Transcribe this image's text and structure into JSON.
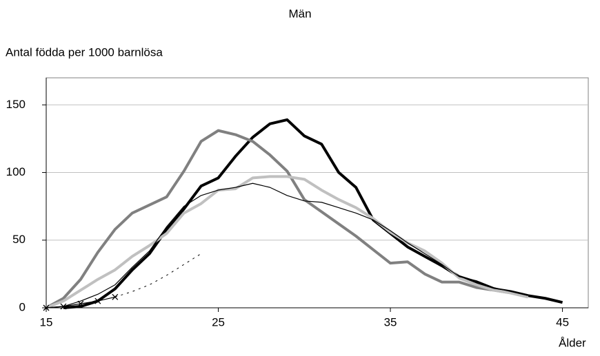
{
  "chart_data": {
    "type": "line",
    "title": "Män",
    "ylabel": "Antal födda per 1000 barnlösa",
    "xlabel": "Ålder",
    "xlim": [
      15,
      46.5
    ],
    "xticks": [
      15,
      25,
      35,
      45
    ],
    "ylim": [
      0,
      170
    ],
    "yticks": [
      0,
      50,
      100,
      150
    ],
    "grid": true,
    "series": [
      {
        "color": "#000000",
        "width": 4,
        "x": [
          16,
          17,
          18,
          19,
          20,
          21,
          22,
          23,
          24,
          25,
          26,
          27,
          28,
          29,
          30,
          31,
          32,
          33,
          34,
          35,
          36,
          37,
          38,
          39,
          40,
          41,
          42,
          43,
          44,
          45
        ],
        "values": [
          0,
          1,
          5,
          14,
          28,
          40,
          58,
          73,
          90,
          96,
          112,
          126,
          136,
          139,
          127,
          121,
          100,
          89,
          65,
          55,
          45,
          38,
          31,
          23,
          19,
          14,
          12,
          9,
          7,
          4
        ]
      },
      {
        "color": "#808080",
        "width": 4,
        "x": [
          15,
          16,
          17,
          18,
          19,
          20,
          21,
          22,
          23,
          24,
          25,
          26,
          27,
          28,
          29,
          30,
          31,
          32,
          33,
          34,
          35,
          36,
          37,
          38,
          39,
          40,
          41,
          42,
          43
        ],
        "values": [
          0,
          7,
          21,
          41,
          58,
          70,
          76,
          82,
          101,
          123,
          131,
          128,
          123,
          113,
          101,
          80,
          71,
          62,
          53,
          43,
          33,
          34,
          25,
          19,
          19,
          15,
          13,
          11,
          8
        ]
      },
      {
        "color": "#c0c0c0",
        "width": 4,
        "x": [
          15,
          16,
          17,
          18,
          19,
          20,
          21,
          22,
          23,
          24,
          25,
          26,
          27,
          28,
          29,
          30,
          31,
          32,
          33,
          34,
          35,
          36,
          37,
          38,
          39,
          40,
          41,
          42,
          43
        ],
        "values": [
          0,
          5,
          13,
          21,
          28,
          38,
          46,
          55,
          70,
          77,
          87,
          88,
          96,
          97,
          97,
          95,
          87,
          80,
          74,
          66,
          56,
          48,
          42,
          33,
          22,
          17,
          13,
          11,
          8
        ]
      },
      {
        "color": "#000000",
        "width": 1.2,
        "x": [
          15,
          16,
          17,
          18,
          19,
          20,
          21,
          22,
          23,
          24,
          25,
          26,
          27,
          28,
          29,
          30,
          31,
          32,
          33,
          34,
          35,
          36,
          37,
          38,
          39,
          40,
          41,
          42,
          43
        ],
        "values": [
          0,
          1,
          5,
          10,
          17,
          30,
          42,
          60,
          75,
          83,
          87,
          89,
          92,
          89,
          83,
          79,
          78,
          74,
          70,
          65,
          57,
          48,
          40,
          32,
          23,
          20,
          15,
          12,
          9
        ]
      },
      {
        "color": "#000000",
        "width": 1.2,
        "marker": "x",
        "x": [
          15,
          16,
          17,
          18,
          19
        ],
        "values": [
          0,
          1,
          3,
          5,
          8
        ]
      },
      {
        "color": "#000000",
        "width": 1,
        "dash": true,
        "x": [
          19,
          20,
          21,
          22,
          23,
          24
        ],
        "values": [
          8,
          12,
          17,
          24,
          32,
          40
        ]
      }
    ]
  }
}
